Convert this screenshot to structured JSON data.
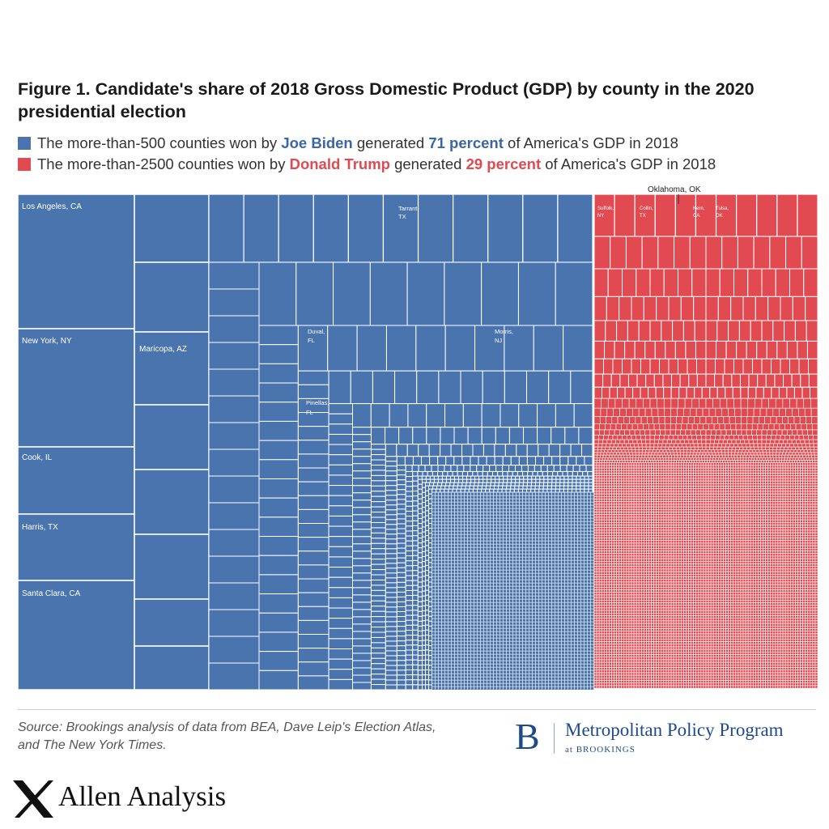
{
  "title": "Figure 1. Candidate's share of 2018 Gross Domestic Product (GDP) by county in the 2020 presidential election",
  "legend": {
    "biden": {
      "prefix": "The more-than-500 counties won by ",
      "name": "Joe Biden",
      "mid": " generated ",
      "share": "71 percent",
      "suffix": " of America's GDP in 2018",
      "color": "#4a74ad"
    },
    "trump": {
      "prefix": "The more-than-2500 counties won by ",
      "name": "Donald Trump",
      "mid": " generated ",
      "share": "29 percent",
      "suffix": " of America's GDP in 2018",
      "color": "#e04a50"
    }
  },
  "chart_data": {
    "type": "treemap",
    "series": [
      {
        "name": "Joe Biden",
        "share_percent": 71,
        "color": "#4a74ad",
        "labeled_counties": [
          "Los Angeles, CA",
          "New York, NY",
          "Cook, IL",
          "Harris, TX",
          "Santa Clara, CA",
          "Maricopa, AZ",
          "Tarrant, TX",
          "Duval, FL",
          "Morris, NJ",
          "Pinellas, FL"
        ]
      },
      {
        "name": "Donald Trump",
        "share_percent": 29,
        "color": "#e04a50",
        "labeled_counties": [
          "Suffolk, NY",
          "Collin, TX",
          "Kern, CA",
          "Tulsa, OK"
        ],
        "callout": "Oklahoma, OK"
      }
    ]
  },
  "labels": {
    "los_angeles": "Los Angeles, CA",
    "new_york": "New York, NY",
    "cook": "Cook, IL",
    "harris": "Harris, TX",
    "santa_clara": "Santa Clara, CA",
    "maricopa": "Maricopa, AZ",
    "tarrant_1": "Tarrant,",
    "tarrant_2": "TX",
    "duval_1": "Duval,",
    "duval_2": "FL",
    "morris_1": "Morris,",
    "morris_2": "NJ",
    "pinellas_1": "Pinellas,",
    "pinellas_2": "FL",
    "suffolk_1": "Suffolk,",
    "suffolk_2": "NY",
    "collin_1": "Collin,",
    "collin_2": "TX",
    "kern_1": "Kern,",
    "kern_2": "CA",
    "tulsa_1": "Tulsa,",
    "tulsa_2": "OK",
    "oklahoma": "Oklahoma, OK"
  },
  "source_line1": "Source: Brookings analysis of data from BEA, Dave Leip's Election Atlas,",
  "source_line2": "and The New York Times.",
  "logo": {
    "letter": "B",
    "name": "Metropolitan Policy Program",
    "sub": "at BROOKINGS"
  },
  "brand": "Allen Analysis"
}
